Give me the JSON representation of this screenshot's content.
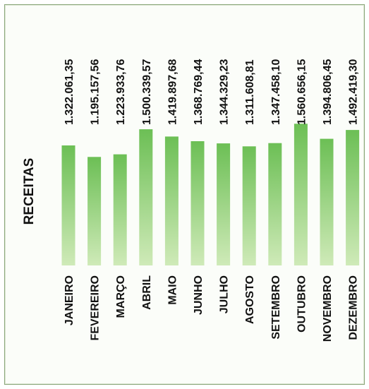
{
  "chart_data": {
    "type": "bar",
    "title": "RECEITAS",
    "categories": [
      "JANEIRO",
      "FEVEREIRO",
      "MARÇO",
      "ABRIL",
      "MAIO",
      "JUNHO",
      "JULHO",
      "AGOSTO",
      "SETEMBRO",
      "OUTUBRO",
      "NOVEMBRO",
      "DEZEMBRO"
    ],
    "value_labels": [
      "1.322.061,35",
      "1.195.157,56",
      "1.223.933,76",
      "1.500.339,57",
      "1.419.897,68",
      "1.368.769,44",
      "1.344.329,23",
      "1.311.608,81",
      "1.347.458,10",
      "1.560.656,15",
      "1.394.806,45",
      "1.492.419,30"
    ],
    "values": [
      1322061.35,
      1195157.56,
      1223933.76,
      1500339.57,
      1419897.68,
      1368769.44,
      1344329.23,
      1311608.81,
      1347458.1,
      1560656.15,
      1394806.45,
      1492419.3
    ],
    "ylim": [
      0,
      1600000
    ],
    "grid": false,
    "legend": "none",
    "colors": {
      "bar_light": "#cfeab8",
      "bar_dark": "#6cbf55",
      "frame": "#8aa67a"
    }
  }
}
